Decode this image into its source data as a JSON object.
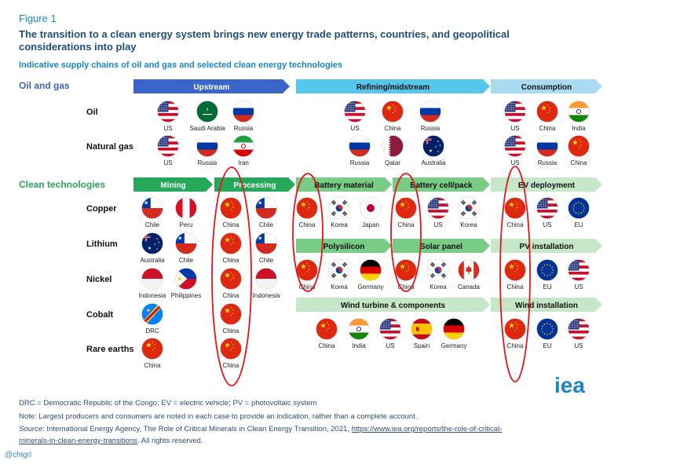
{
  "figure_label": "Figure 1",
  "title": "The transition to a clean energy system brings new energy trade patterns, countries, and geopolitical considerations into play",
  "subtitle": "Indicative supply chains of oil and gas and selected clean energy technologies",
  "colors": {
    "blue_dark": "#3b66c9",
    "blue_mid": "#55c6ec",
    "blue_light": "#a9dcf3",
    "green_dark": "#25a85a",
    "green_mid": "#79cc85",
    "green_light": "#c6e7c8",
    "highlight_red": "#e3161b",
    "text_blue": "#1a86c9",
    "title_navy": "#1f4e79"
  },
  "sections": {
    "oil_gas": {
      "label": "Oil and gas",
      "stages": [
        {
          "label": "Upstream",
          "shade": "dark"
        },
        {
          "label": "Refining/midstream",
          "shade": "mid"
        },
        {
          "label": "Consumption",
          "shade": "light"
        }
      ],
      "rows": [
        {
          "label": "Oil",
          "groups": [
            [
              {
                "country": "US",
                "flag": "us-flag"
              },
              {
                "country": "Saudi Arabia",
                "flag": "saudi-arabia-flag"
              },
              {
                "country": "Russia",
                "flag": "russia-flag"
              }
            ],
            [
              {
                "country": "US",
                "flag": "us-flag"
              },
              {
                "country": "China",
                "flag": "china-flag"
              },
              {
                "country": "Russia",
                "flag": "russia-flag"
              }
            ],
            [
              {
                "country": "US",
                "flag": "us-flag"
              },
              {
                "country": "China",
                "flag": "china-flag"
              },
              {
                "country": "India",
                "flag": "india-flag"
              }
            ]
          ]
        },
        {
          "label": "Natural gas",
          "groups": [
            [
              {
                "country": "US",
                "flag": "us-flag"
              },
              {
                "country": "Russia",
                "flag": "russia-flag"
              },
              {
                "country": "Iran",
                "flag": "iran-flag"
              }
            ],
            [
              {
                "country": "Russia",
                "flag": "russia-flag"
              },
              {
                "country": "Qatar",
                "flag": "qatar-flag"
              },
              {
                "country": "Australia",
                "flag": "australia-flag"
              }
            ],
            [
              {
                "country": "US",
                "flag": "us-flag"
              },
              {
                "country": "Russia",
                "flag": "russia-flag"
              },
              {
                "country": "China",
                "flag": "china-flag"
              }
            ]
          ]
        }
      ]
    },
    "clean_tech": {
      "label": "Clean technologies",
      "stages": [
        {
          "label": "Mining",
          "shade": "dark"
        },
        {
          "label": "Processing",
          "shade": "dark"
        }
      ],
      "rows": [
        {
          "label": "Copper",
          "mining": [
            {
              "country": "Chile",
              "flag": "chile-flag"
            },
            {
              "country": "Peru",
              "flag": "peru-flag"
            }
          ],
          "processing": [
            {
              "country": "China",
              "flag": "china-flag"
            },
            {
              "country": "Chile",
              "flag": "chile-flag"
            }
          ]
        },
        {
          "label": "Lithium",
          "mining": [
            {
              "country": "Australia",
              "flag": "australia-flag"
            },
            {
              "country": "Chile",
              "flag": "chile-flag"
            }
          ],
          "processing": [
            {
              "country": "China",
              "flag": "china-flag"
            },
            {
              "country": "Chile",
              "flag": "chile-flag"
            }
          ]
        },
        {
          "label": "Nickel",
          "mining": [
            {
              "country": "Indonesia",
              "flag": "indonesia-flag"
            },
            {
              "country": "Philippines",
              "flag": "philippines-flag"
            }
          ],
          "processing": [
            {
              "country": "China",
              "flag": "china-flag"
            },
            {
              "country": "Indonesia",
              "flag": "indonesia-flag"
            }
          ]
        },
        {
          "label": "Cobalt",
          "mining": [
            {
              "country": "DRC",
              "flag": "drc-flag"
            }
          ],
          "processing": [
            {
              "country": "China",
              "flag": "china-flag"
            }
          ]
        },
        {
          "label": "Rare earths",
          "mining": [
            {
              "country": "China",
              "flag": "china-flag"
            }
          ],
          "processing": [
            {
              "country": "China",
              "flag": "china-flag"
            }
          ]
        }
      ],
      "manufacturing": [
        {
          "label": "Battery material",
          "shade": "mid",
          "flags": [
            {
              "country": "China",
              "flag": "china-flag"
            },
            {
              "country": "Korea",
              "flag": "korea-flag"
            },
            {
              "country": "Japan",
              "flag": "japan-flag"
            }
          ]
        },
        {
          "label": "Battery cell/pack",
          "shade": "mid",
          "flags": [
            {
              "country": "China",
              "flag": "china-flag"
            },
            {
              "country": "US",
              "flag": "us-flag"
            },
            {
              "country": "Korea",
              "flag": "korea-flag"
            }
          ]
        },
        {
          "label": "Polysilicon",
          "shade": "mid",
          "flags": [
            {
              "country": "China",
              "flag": "china-flag"
            },
            {
              "country": "Korea",
              "flag": "korea-flag"
            },
            {
              "country": "Germany",
              "flag": "germany-flag"
            }
          ]
        },
        {
          "label": "Solar panel",
          "shade": "mid",
          "flags": [
            {
              "country": "China",
              "flag": "china-flag"
            },
            {
              "country": "Korea",
              "flag": "korea-flag"
            },
            {
              "country": "Canada",
              "flag": "canada-flag"
            }
          ]
        },
        {
          "label": "Wind turbine & components",
          "shade": "light",
          "flags": [
            {
              "country": "China",
              "flag": "china-flag"
            },
            {
              "country": "India",
              "flag": "india-flag"
            },
            {
              "country": "US",
              "flag": "us-flag"
            },
            {
              "country": "Spain",
              "flag": "spain-flag"
            },
            {
              "country": "Germany",
              "flag": "germany-flag"
            }
          ]
        }
      ],
      "deployment": [
        {
          "label": "EV deployment",
          "flags": [
            {
              "country": "China",
              "flag": "china-flag"
            },
            {
              "country": "US",
              "flag": "us-flag"
            },
            {
              "country": "EU",
              "flag": "eu-flag"
            }
          ]
        },
        {
          "label": "PV installation",
          "flags": [
            {
              "country": "China",
              "flag": "china-flag"
            },
            {
              "country": "EU",
              "flag": "eu-flag"
            },
            {
              "country": "US",
              "flag": "us-flag"
            }
          ]
        },
        {
          "label": "Wind installation",
          "flags": [
            {
              "country": "China",
              "flag": "china-flag"
            },
            {
              "country": "EU",
              "flag": "eu-flag"
            },
            {
              "country": "US",
              "flag": "us-flag"
            }
          ]
        }
      ]
    }
  },
  "footnotes": {
    "abbrev": "DRC = Democratic Republic of the Congo; EV = electric vehicle; PV = photovoltaic system",
    "note": "Note: Largest producers and consumers are noted in each case to provide an indication, rather than a complete account.",
    "source_label": "Source:",
    "source_text": " International Energy Agency, The Role of Critical Minerals in Clean Energy Transition, 2021, ",
    "source_url_1": "https://www.iea.org/reports/the-role-of-critical-",
    "source_url_2": "minerals-in-clean-energy-transitions",
    "source_tail": ". All rights reserved."
  },
  "logo_text": "iea",
  "credit": "@chigrl"
}
